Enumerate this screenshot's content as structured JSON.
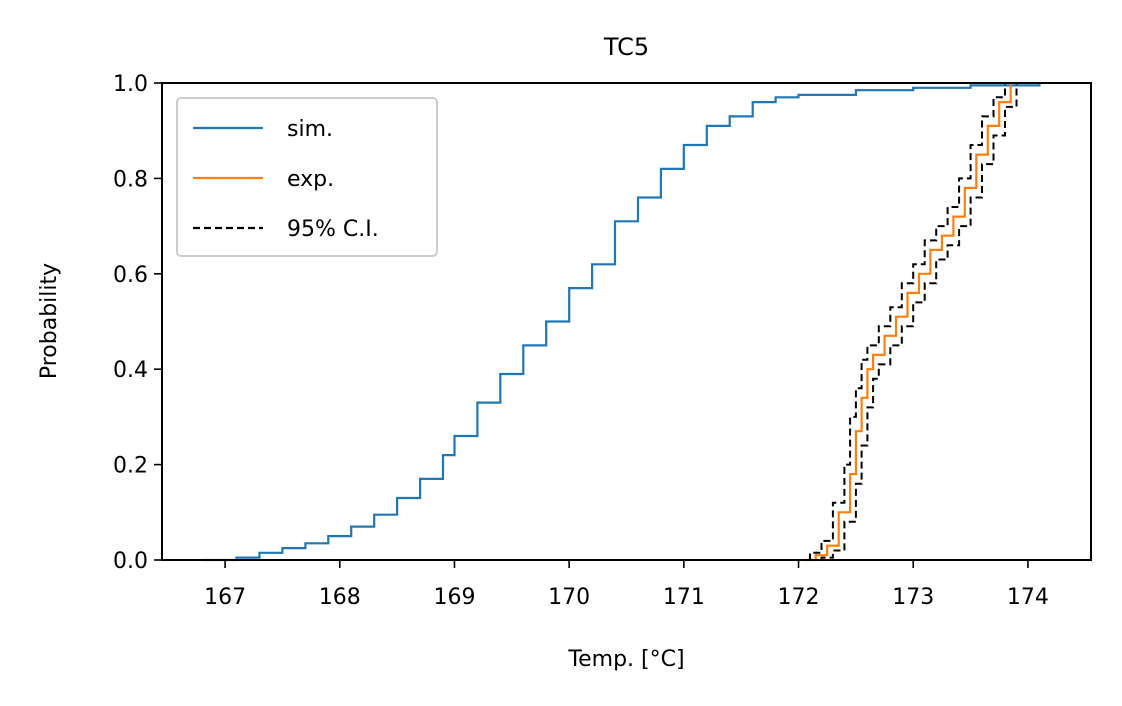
{
  "chart_data": {
    "type": "line",
    "title": "TC5",
    "xlabel": "Temp. [°C]",
    "ylabel": "Probability",
    "xlim": [
      166.45,
      174.55
    ],
    "ylim": [
      0.0,
      1.0
    ],
    "xticks": [
      "167",
      "168",
      "169",
      "170",
      "171",
      "172",
      "173",
      "174"
    ],
    "yticks": [
      "0.0",
      "0.2",
      "0.4",
      "0.6",
      "0.8",
      "1.0"
    ],
    "grid": false,
    "legend_position": "upper-left",
    "series": [
      {
        "name": "sim.",
        "color": "#1f77b4",
        "style": "solid",
        "x": [
          166.8,
          167.1,
          167.3,
          167.5,
          167.7,
          167.9,
          168.1,
          168.3,
          168.5,
          168.7,
          168.9,
          169.0,
          169.2,
          169.4,
          169.6,
          169.8,
          170.0,
          170.2,
          170.4,
          170.6,
          170.8,
          171.0,
          171.2,
          171.4,
          171.6,
          171.8,
          172.0,
          172.5,
          173.0,
          173.5,
          174.1
        ],
        "y": [
          0.0,
          0.005,
          0.015,
          0.025,
          0.035,
          0.05,
          0.07,
          0.095,
          0.13,
          0.17,
          0.22,
          0.26,
          0.33,
          0.39,
          0.45,
          0.5,
          0.57,
          0.62,
          0.71,
          0.76,
          0.82,
          0.87,
          0.91,
          0.93,
          0.96,
          0.97,
          0.975,
          0.985,
          0.99,
          0.995,
          1.0
        ]
      },
      {
        "name": "exp.",
        "color": "#ff7f0e",
        "style": "solid",
        "x": [
          172.05,
          172.15,
          172.25,
          172.35,
          172.45,
          172.5,
          172.55,
          172.6,
          172.65,
          172.75,
          172.85,
          172.95,
          173.05,
          173.15,
          173.25,
          173.35,
          173.45,
          173.55,
          173.65,
          173.75,
          173.85
        ],
        "y": [
          0.0,
          0.01,
          0.03,
          0.1,
          0.18,
          0.27,
          0.34,
          0.4,
          0.43,
          0.47,
          0.51,
          0.56,
          0.6,
          0.65,
          0.68,
          0.72,
          0.78,
          0.85,
          0.91,
          0.96,
          1.0
        ]
      },
      {
        "name": "95% C.I.",
        "color": "#000000",
        "style": "dashed",
        "x": [
          172.0,
          172.1,
          172.2,
          172.3,
          172.4,
          172.45,
          172.5,
          172.55,
          172.6,
          172.7,
          172.8,
          172.9,
          173.0,
          173.1,
          173.2,
          173.3,
          173.4,
          173.5,
          173.6,
          173.7,
          173.8
        ],
        "y": [
          0.0,
          0.015,
          0.04,
          0.12,
          0.2,
          0.3,
          0.36,
          0.42,
          0.45,
          0.49,
          0.53,
          0.58,
          0.62,
          0.67,
          0.7,
          0.74,
          0.8,
          0.87,
          0.93,
          0.97,
          1.0
        ]
      },
      {
        "name": "",
        "color": "#000000",
        "style": "dashed",
        "x": [
          172.1,
          172.2,
          172.3,
          172.4,
          172.5,
          172.55,
          172.6,
          172.65,
          172.7,
          172.8,
          172.9,
          173.0,
          173.1,
          173.2,
          173.3,
          173.4,
          173.5,
          173.6,
          173.7,
          173.8,
          173.9
        ],
        "y": [
          0.0,
          0.005,
          0.02,
          0.08,
          0.16,
          0.24,
          0.32,
          0.38,
          0.41,
          0.45,
          0.49,
          0.54,
          0.58,
          0.63,
          0.66,
          0.7,
          0.76,
          0.83,
          0.89,
          0.95,
          1.0
        ]
      }
    ]
  }
}
